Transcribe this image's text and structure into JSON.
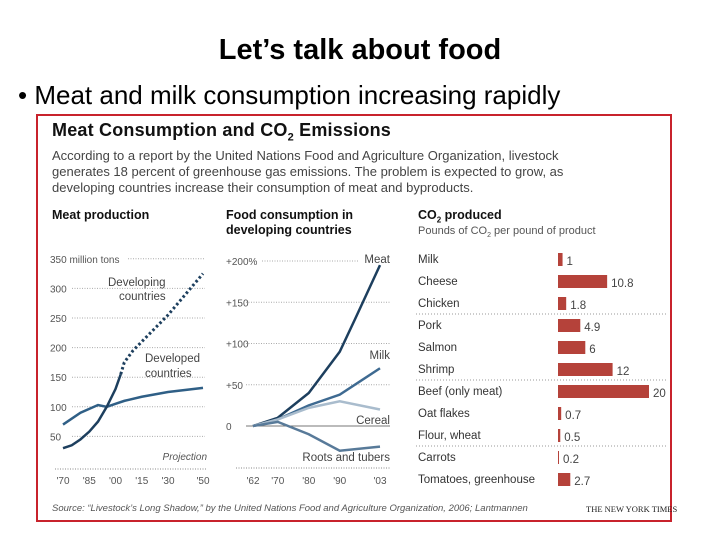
{
  "slide": {
    "title": "Let’s talk about food",
    "bullet": "Meat and milk consumption increasing rapidly"
  },
  "graphic": {
    "title": "Meat Consumption and CO",
    "title_sub": "2",
    "title_end": " Emissions",
    "description": [
      "According to a report by the United Nations Food and Agriculture Organization, livestock",
      "generates 18 percent of greenhouse gas emissions. The problem is expected to grow, as",
      "developing countries increase their consumption of meat and byproducts."
    ],
    "source": "Source: “Livestock’s Long Shadow,” by the United Nations Food and Agriculture Organization, 2006; Lantmannen",
    "credit": "THE NEW YORK TIMES",
    "accent_color": "#c8232c",
    "bar_color": "#b5423a",
    "line_color": "#1d3f5e"
  },
  "chart_data": [
    {
      "type": "line",
      "title": "Meat production",
      "ylabel": "350 million tons",
      "yticks": [
        "350 million tons",
        "300",
        "250",
        "200",
        "150",
        "100",
        "50"
      ],
      "ytick_values": [
        350,
        300,
        250,
        200,
        150,
        100,
        50
      ],
      "xticks": [
        "'70",
        "'85",
        "'00",
        "'15",
        "'30",
        "'50"
      ],
      "xlim": [
        1970,
        2050
      ],
      "ylim": [
        0,
        350
      ],
      "annotation": "Projection",
      "series": [
        {
          "name": "Developing countries",
          "label": [
            "Developing",
            "countries"
          ],
          "x": [
            1970,
            1975,
            1980,
            1985,
            1990,
            1995,
            2000,
            2003
          ],
          "y": [
            30,
            35,
            45,
            58,
            75,
            100,
            130,
            155
          ],
          "projection": {
            "x": [
              2003,
              2005,
              2010,
              2020,
              2030,
              2040,
              2050
            ],
            "y": [
              155,
              175,
              195,
              225,
              255,
              290,
              325
            ]
          }
        },
        {
          "name": "Developed countries",
          "label": [
            "Developed",
            "countries"
          ],
          "x": [
            1970,
            1980,
            1990,
            1995,
            2000,
            2005,
            2015,
            2030,
            2050
          ],
          "y": [
            70,
            90,
            103,
            100,
            105,
            110,
            117,
            125,
            132
          ]
        }
      ]
    },
    {
      "type": "line",
      "title": [
        "Food consumption in",
        "developing countries"
      ],
      "yticks": [
        "+200%",
        "+150",
        "+100",
        "+50",
        "0"
      ],
      "ytick_values": [
        200,
        150,
        100,
        50,
        0
      ],
      "xticks": [
        "'62",
        "'70",
        "'80",
        "'90",
        "'03"
      ],
      "xlim": [
        1962,
        2003
      ],
      "ylim": [
        -40,
        200
      ],
      "series": [
        {
          "name": "Meat",
          "x": [
            1962,
            1970,
            1980,
            1990,
            1995,
            2003
          ],
          "y": [
            0,
            10,
            40,
            90,
            130,
            195
          ]
        },
        {
          "name": "Milk",
          "x": [
            1962,
            1970,
            1980,
            1990,
            2003
          ],
          "y": [
            0,
            8,
            25,
            38,
            70
          ]
        },
        {
          "name": "Cereal",
          "x": [
            1962,
            1970,
            1980,
            1990,
            2003
          ],
          "y": [
            0,
            8,
            22,
            30,
            20
          ]
        },
        {
          "name": "Roots and tubers",
          "x": [
            1962,
            1970,
            1980,
            1990,
            2003
          ],
          "y": [
            0,
            5,
            -10,
            -30,
            -25
          ]
        }
      ]
    },
    {
      "type": "bar",
      "title": "CO2 produced",
      "title_main": "CO",
      "title_sub": "2",
      "title_end": " produced",
      "subtitle": [
        "Pounds of CO",
        "2",
        " per pound of product"
      ],
      "categories": [
        "Milk",
        "Cheese",
        "Chicken",
        "Pork",
        "Salmon",
        "Shrimp",
        "Beef (only meat)",
        "Oat flakes",
        "Flour, wheat",
        "Carrots",
        "Tomatoes, greenhouse"
      ],
      "values": [
        1,
        10.8,
        1.8,
        4.9,
        6,
        12,
        20,
        0.7,
        0.5,
        0.2,
        2.7
      ],
      "labels": [
        "1",
        "10.8",
        "1.8",
        "4.9",
        "6",
        "12",
        "20",
        "0.7",
        "0.5",
        "0.2",
        "2.7"
      ]
    }
  ]
}
